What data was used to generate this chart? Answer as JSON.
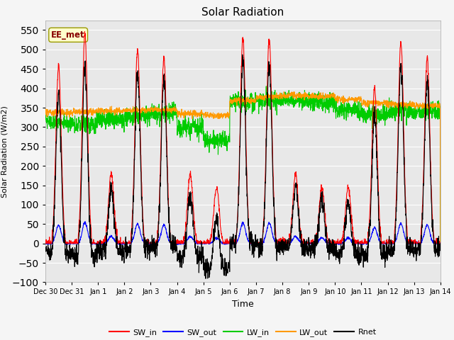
{
  "title": "Solar Radiation",
  "xlabel": "Time",
  "ylabel": "Solar Radiation (W/m2)",
  "ylim": [
    -100,
    575
  ],
  "yticks": [
    -100,
    -50,
    0,
    50,
    100,
    150,
    200,
    250,
    300,
    350,
    400,
    450,
    500,
    550
  ],
  "legend_labels": [
    "SW_in",
    "SW_out",
    "LW_in",
    "LW_out",
    "Rnet"
  ],
  "legend_colors": [
    "#ff0000",
    "#0000ff",
    "#00cc00",
    "#ff9900",
    "#000000"
  ],
  "annotation_text": "EE_met",
  "annotation_box_facecolor": "#ffffcc",
  "annotation_box_edge": "#999900",
  "annotation_text_color": "#880000",
  "bg_color": "#e8e8e8",
  "grid_color": "#ffffff",
  "fig_facecolor": "#f5f5f5",
  "tick_fontsize": 7,
  "title_fontsize": 11,
  "ylabel_fontsize": 8,
  "xlabel_fontsize": 9,
  "legend_fontsize": 8,
  "n_days": 15,
  "n_pts_per_day": 144
}
